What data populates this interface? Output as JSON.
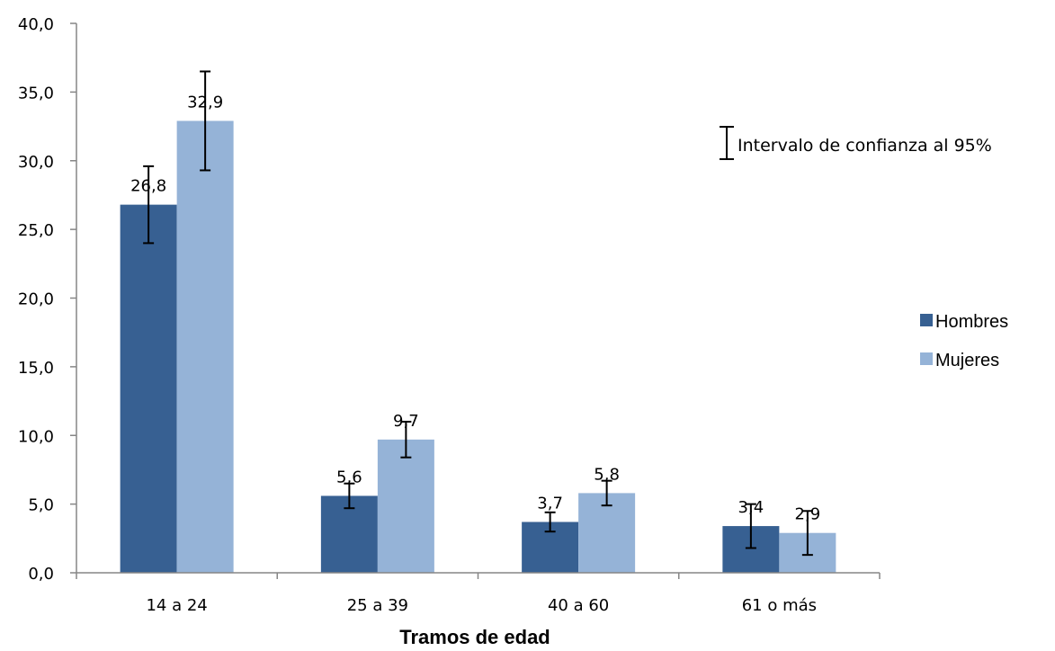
{
  "chart_data": {
    "type": "bar",
    "categories": [
      "14 a 24",
      "25 a 39",
      "40 a 60",
      "61 o más"
    ],
    "series": [
      {
        "name": "Hombres",
        "color": "#376092",
        "values": [
          26.8,
          5.6,
          3.7,
          3.4
        ],
        "labels": [
          "26,8",
          "5,6",
          "3,7",
          "3,4"
        ],
        "ci_low": [
          24.0,
          4.7,
          3.0,
          1.8
        ],
        "ci_high": [
          29.6,
          6.5,
          4.4,
          5.0
        ]
      },
      {
        "name": "Mujeres",
        "color": "#95B3D7",
        "values": [
          32.9,
          9.7,
          5.8,
          2.9
        ],
        "labels": [
          "32,9",
          "9,7",
          "5,8",
          "2,9"
        ],
        "ci_low": [
          29.3,
          8.4,
          4.9,
          1.3
        ],
        "ci_high": [
          36.5,
          11.0,
          6.7,
          4.5
        ]
      }
    ],
    "ylim": [
      0,
      40
    ],
    "yticks": [
      0,
      5,
      10,
      15,
      20,
      25,
      30,
      35,
      40
    ],
    "ytick_labels": [
      "0,0",
      "5,0",
      "10,0",
      "15,0",
      "20,0",
      "25,0",
      "30,0",
      "35,0",
      "40,0"
    ],
    "xlabel": "Tramos de edad",
    "ylabel": "",
    "title": "",
    "grid": false,
    "legend_position": "right",
    "error_bar_note": "Intervalo de confianza al 95%"
  }
}
